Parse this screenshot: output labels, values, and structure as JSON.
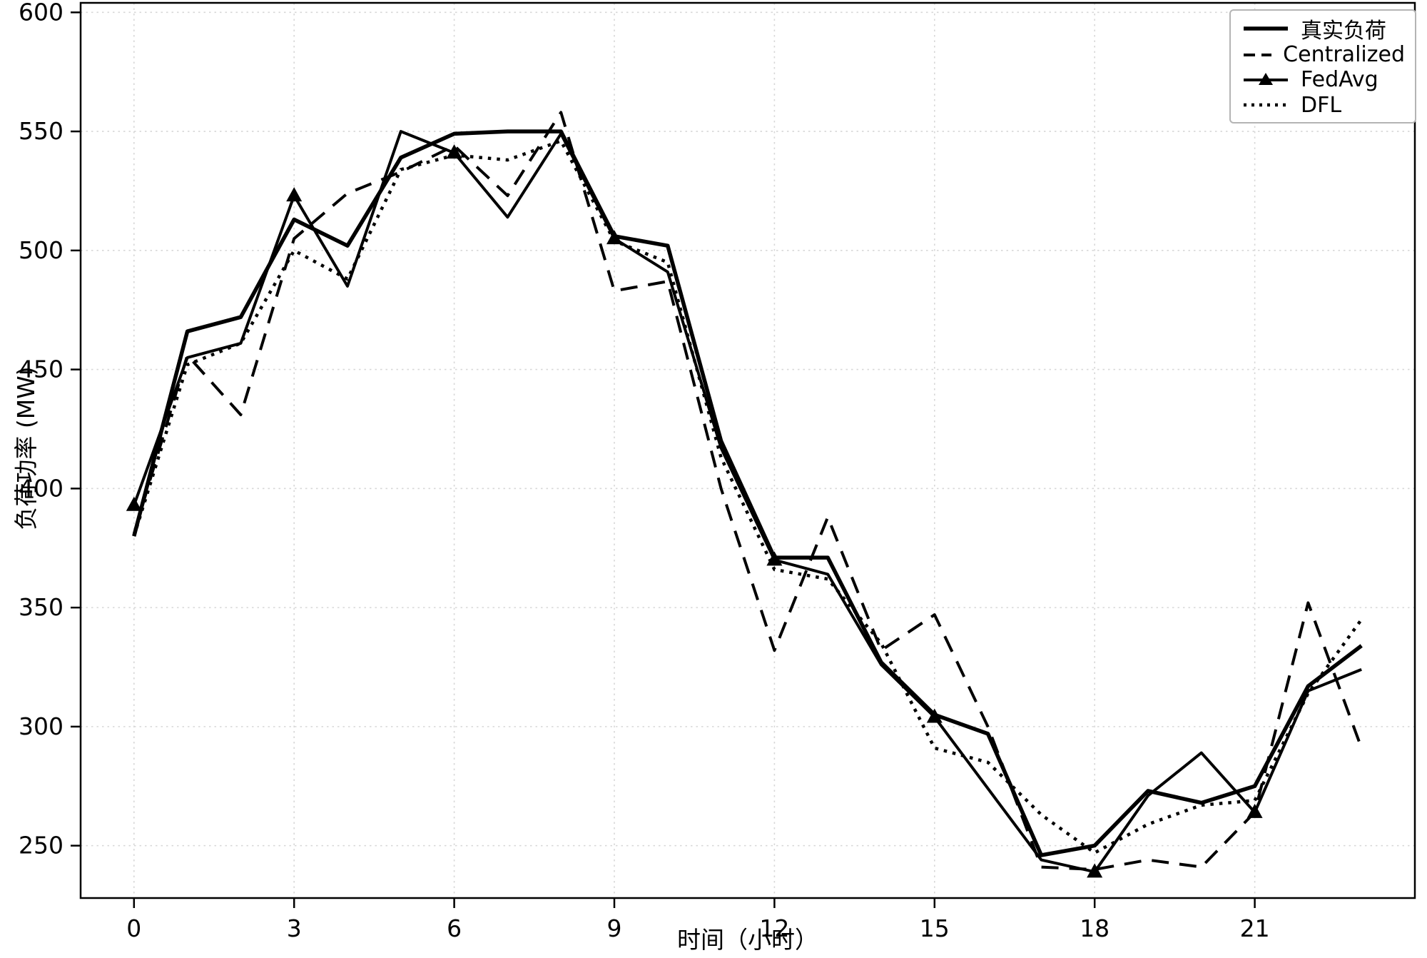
{
  "figure": {
    "background": "#ffffff",
    "line_color": "#000000",
    "grid_color": "#d7d7d7",
    "spine_color": "#000000",
    "legend_border_color": "#b4b4b4"
  },
  "chart_data": {
    "type": "line",
    "title": "",
    "xlabel": "时间（小时）",
    "ylabel": "负荷功率 (MW)",
    "x": [
      0,
      1,
      2,
      3,
      4,
      5,
      6,
      7,
      8,
      9,
      10,
      11,
      12,
      13,
      14,
      15,
      16,
      17,
      18,
      19,
      20,
      21,
      22,
      23
    ],
    "series": [
      {
        "key": "true-load",
        "name": "真实负荷",
        "style": "solid",
        "linewidth": 5.5,
        "dash": "",
        "marker": "none",
        "values": [
          380,
          466,
          472,
          513,
          502,
          539,
          549,
          550,
          550,
          506,
          502,
          420,
          371,
          371,
          327,
          305,
          297,
          246,
          250,
          273,
          268,
          275,
          317,
          334
        ]
      },
      {
        "key": "centralized",
        "name": "Centralized",
        "style": "dashed",
        "linewidth": 4,
        "dash": "24 15",
        "marker": "none",
        "values": [
          381,
          456,
          431,
          505,
          524,
          533,
          544,
          523,
          558,
          483,
          487,
          400,
          332,
          388,
          332,
          347,
          300,
          241,
          240,
          244,
          241,
          264,
          352,
          291
        ]
      },
      {
        "key": "fedavg",
        "name": "FedAvg",
        "style": "solid-triangle",
        "linewidth": 4,
        "dash": "",
        "marker": "triangle",
        "markevery": 3,
        "values": [
          393,
          455,
          461,
          523,
          485,
          550,
          541,
          514,
          549,
          505,
          491,
          417,
          370,
          364,
          326,
          304,
          274,
          244,
          239,
          271,
          289,
          264,
          315,
          324
        ]
      },
      {
        "key": "dfl",
        "name": "DFL",
        "style": "dotted",
        "linewidth": 4.5,
        "dash": "4.5 8",
        "marker": "none",
        "values": [
          380,
          452,
          461,
          500,
          488,
          534,
          540,
          538,
          546,
          504,
          495,
          413,
          366,
          362,
          335,
          291,
          285,
          263,
          247,
          259,
          267,
          269,
          314,
          345
        ]
      }
    ],
    "xticks": [
      0,
      3,
      6,
      9,
      12,
      15,
      18,
      21
    ],
    "yticks": [
      250,
      300,
      350,
      400,
      450,
      500,
      550,
      600
    ],
    "xlim": [
      -1,
      24
    ],
    "ylim": [
      228,
      604
    ],
    "grid": true,
    "grid_style": "dotted",
    "legend_position": "upper right"
  }
}
